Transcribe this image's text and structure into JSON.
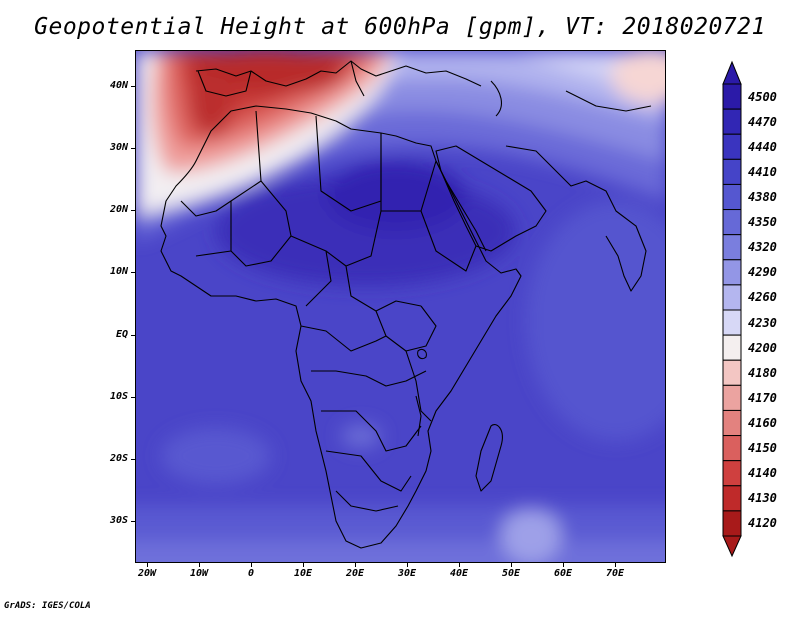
{
  "title": "Geopotential Height at 600hPa [gpm], VT: 2018020721",
  "footer": "GrADS: IGES/COLA",
  "map": {
    "lat_labels": [
      "40N",
      "30N",
      "20N",
      "10N",
      "EQ",
      "10S",
      "20S",
      "30S"
    ],
    "lon_labels": [
      "20W",
      "10W",
      "0",
      "10E",
      "20E",
      "30E",
      "40E",
      "50E",
      "60E",
      "70E"
    ],
    "lon_range": [
      -22,
      80
    ],
    "lat_range": [
      -37,
      45
    ]
  },
  "colorbar": {
    "levels": [
      "4500",
      "4470",
      "4440",
      "4410",
      "4380",
      "4350",
      "4320",
      "4290",
      "4260",
      "4230",
      "4200",
      "4180",
      "4170",
      "4160",
      "4150",
      "4140",
      "4130",
      "4120"
    ],
    "colors": [
      "#2b1aa8",
      "#3126b4",
      "#3a34bf",
      "#4544c8",
      "#5557d0",
      "#6669d7",
      "#7a7ede",
      "#9396e6",
      "#b4b6ef",
      "#d7d8f6",
      "#f4efef",
      "#f3c6c3",
      "#eba3a0",
      "#e3827f",
      "#da605e",
      "#cf403f",
      "#bf2a2a",
      "#a81a1a"
    ]
  }
}
